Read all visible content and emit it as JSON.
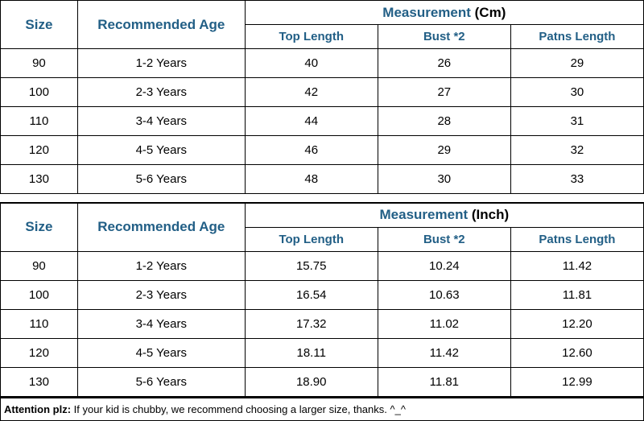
{
  "colors": {
    "header_text": "#225f86",
    "border": "#000000",
    "body_text": "#000000",
    "background": "#ffffff"
  },
  "typography": {
    "header_font": "Comic Sans MS",
    "body_font": "Comic Sans MS",
    "note_font": "Arial",
    "header_main_fontsize": 17,
    "header_sub_fontsize": 15,
    "body_fontsize": 15,
    "note_fontsize": 13
  },
  "tableCm": {
    "headers": {
      "size": "Size",
      "age": "Recommended Age",
      "measurement_label": "Measurement",
      "unit": "(Cm)",
      "sub": [
        "Top Length",
        "Bust *2",
        "Patns Length"
      ]
    },
    "rows": [
      {
        "size": "90",
        "age": "1-2 Years",
        "m": [
          "40",
          "26",
          "29"
        ]
      },
      {
        "size": "100",
        "age": "2-3 Years",
        "m": [
          "42",
          "27",
          "30"
        ]
      },
      {
        "size": "110",
        "age": "3-4 Years",
        "m": [
          "44",
          "28",
          "31"
        ]
      },
      {
        "size": "120",
        "age": "4-5 Years",
        "m": [
          "46",
          "29",
          "32"
        ]
      },
      {
        "size": "130",
        "age": "5-6 Years",
        "m": [
          "48",
          "30",
          "33"
        ]
      }
    ]
  },
  "tableInch": {
    "headers": {
      "size": "Size",
      "age": "Recommended Age",
      "measurement_label": "Measurement",
      "unit": "(Inch)",
      "sub": [
        "Top Length",
        "Bust *2",
        "Patns Length"
      ]
    },
    "rows": [
      {
        "size": "90",
        "age": "1-2 Years",
        "m": [
          "15.75",
          "10.24",
          "11.42"
        ]
      },
      {
        "size": "100",
        "age": "2-3 Years",
        "m": [
          "16.54",
          "10.63",
          "11.81"
        ]
      },
      {
        "size": "110",
        "age": "3-4 Years",
        "m": [
          "17.32",
          "11.02",
          "12.20"
        ]
      },
      {
        "size": "120",
        "age": "4-5 Years",
        "m": [
          "18.11",
          "11.42",
          "12.60"
        ]
      },
      {
        "size": "130",
        "age": "5-6 Years",
        "m": [
          "18.90",
          "11.81",
          "12.99"
        ]
      }
    ]
  },
  "note": {
    "label": "Attention plz:",
    "text": " If your kid is chubby, we recommend choosing a larger size, thanks. ^_^"
  }
}
